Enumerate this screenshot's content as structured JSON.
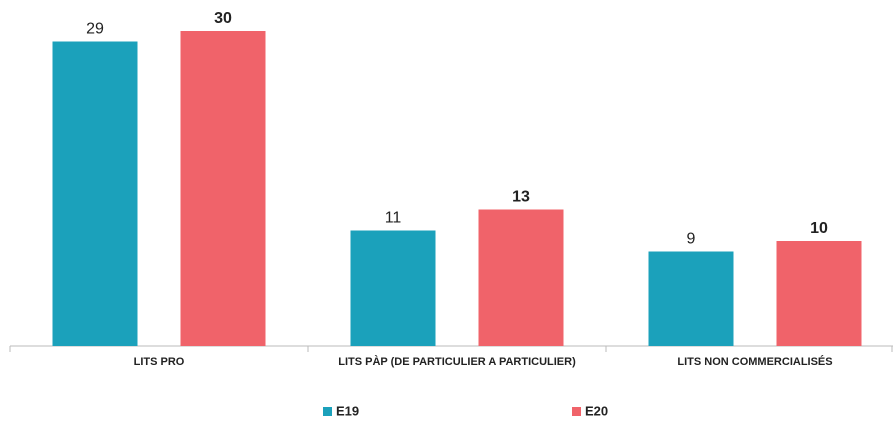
{
  "chart_data": {
    "type": "bar",
    "categories": [
      "LITS PRO",
      "LITS PÀP (DE PARTICULIER A PARTICULIER)",
      "LITS NON COMMERCIALISÉS"
    ],
    "series": [
      {
        "name": "E19",
        "color": "#1ba1bb",
        "values": [
          29,
          11,
          9
        ]
      },
      {
        "name": "E20",
        "color": "#f0636a",
        "values": [
          30,
          13,
          10
        ]
      }
    ]
  }
}
